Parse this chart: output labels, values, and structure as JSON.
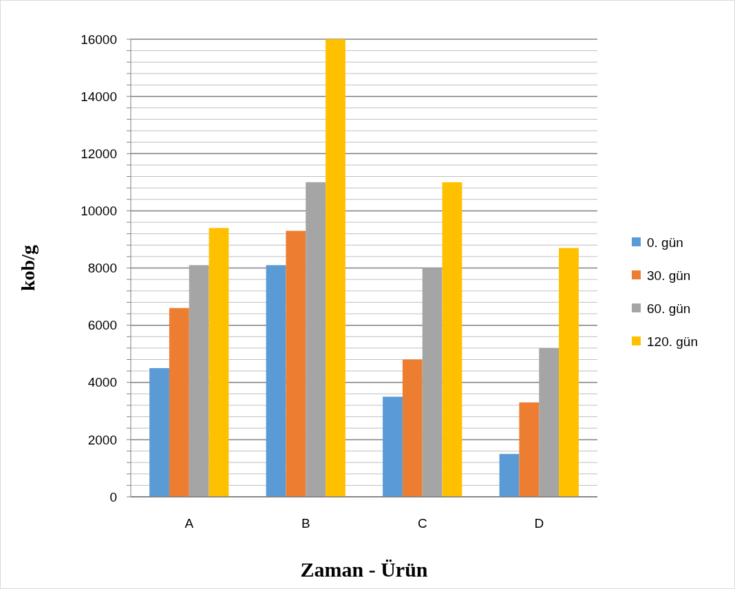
{
  "chart_data": {
    "type": "bar",
    "xlabel": "Zaman - Ürün",
    "ylabel": "kob/g",
    "categories": [
      "A",
      "B",
      "C",
      "D"
    ],
    "series": [
      {
        "name": "0. gün",
        "color": "#5b9bd5",
        "values": [
          4500,
          8100,
          3500,
          1500
        ]
      },
      {
        "name": "30. gün",
        "color": "#ed7d31",
        "values": [
          6600,
          9300,
          4800,
          3300
        ]
      },
      {
        "name": "60. gün",
        "color": "#a5a5a5",
        "values": [
          8100,
          11000,
          8000,
          5200
        ]
      },
      {
        "name": "120. gün",
        "color": "#ffc000",
        "values": [
          9400,
          16000,
          11000,
          8700
        ]
      }
    ],
    "ylim": [
      0,
      16000
    ],
    "yticks": [
      0,
      {
        "value": 400,
        "label": null
      },
      {
        "value": 800,
        "label": null
      },
      {
        "value": 1200,
        "label": null
      },
      {
        "value": 1600,
        "label": null
      },
      2000,
      {
        "value": 2400,
        "label": null
      },
      {
        "value": 2800,
        "label": null
      },
      {
        "value": 3200,
        "label": null
      },
      {
        "value": 3600,
        "label": null
      },
      4000,
      {
        "value": 4400,
        "label": null
      },
      {
        "value": 4800,
        "label": null
      },
      {
        "value": 5200,
        "label": null
      },
      {
        "value": 5600,
        "label": null
      },
      6000,
      {
        "value": 6400,
        "label": null
      },
      {
        "value": 6800,
        "label": null
      },
      {
        "value": 7200,
        "label": null
      },
      {
        "value": 7600,
        "label": null
      },
      8000,
      {
        "value": 8400,
        "label": null
      },
      {
        "value": 8800,
        "label": null
      },
      {
        "value": 9200,
        "label": null
      },
      {
        "value": 9600,
        "label": null
      },
      10000,
      {
        "value": 10400,
        "label": null
      },
      {
        "value": 10800,
        "label": null
      },
      {
        "value": 11200,
        "label": null
      },
      {
        "value": 11600,
        "label": null
      },
      12000,
      {
        "value": 12400,
        "label": null
      },
      {
        "value": 12800,
        "label": null
      },
      {
        "value": 13200,
        "label": null
      },
      {
        "value": 13600,
        "label": null
      },
      14000,
      {
        "value": 14400,
        "label": null
      },
      {
        "value": 14800,
        "label": null
      },
      {
        "value": 15200,
        "label": null
      },
      {
        "value": 15600,
        "label": null
      },
      16000
    ],
    "grid": "y",
    "legend": "right"
  }
}
